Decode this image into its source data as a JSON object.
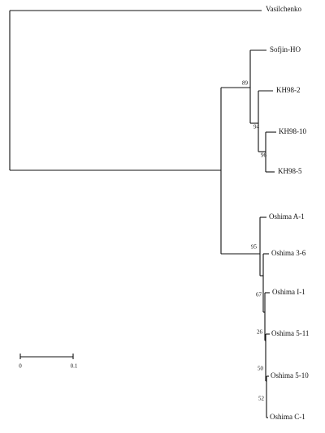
{
  "leaves": [
    "Vasilchenko",
    "Sofjin-HO",
    "KH98-2",
    "KH98-10",
    "KH98-5",
    "Oshima A-1",
    "Oshima 3-6",
    "Oshima I-1",
    "Oshima 5-11",
    "Oshima 5-10",
    "Oshima C-1"
  ],
  "bootstrap": [
    89,
    94,
    96,
    95,
    67,
    26,
    50,
    52
  ],
  "scale_bar": {
    "ticks": [
      0,
      0.1
    ]
  }
}
